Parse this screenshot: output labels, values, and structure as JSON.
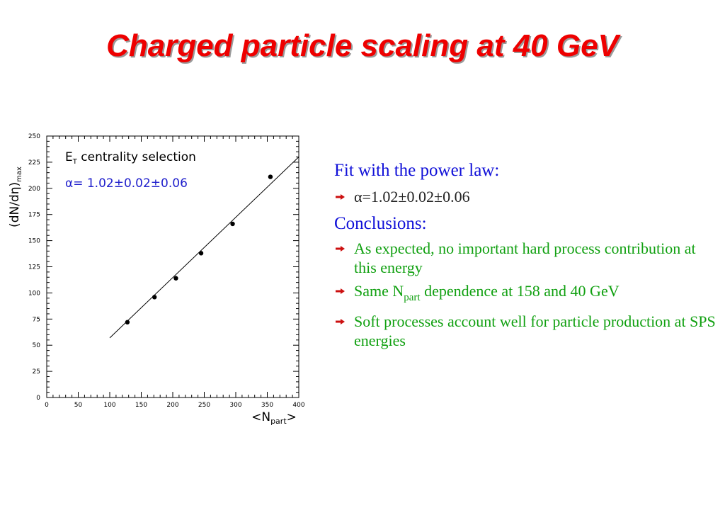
{
  "title": "Charged particle scaling at 40 GeV",
  "panel": {
    "fit_heading": "Fit with the power law:",
    "fit_result": "α=1.02±0.02±0.06",
    "conclusions_heading": "Conclusions:",
    "b1": "As expected, no important hard process contribution at this energy",
    "b2_pre": "Same N",
    "b2_sub": "part",
    "b2_post": " dependence at 158 and 40 GeV",
    "b3": "Soft processes account well for particle production at SPS energies",
    "arrow_icon": "right-arrow-icon"
  },
  "colors": {
    "title": "#ee0000",
    "heading": "#1010d8",
    "bullet_green": "#10a010",
    "chart_alpha": "#2020cc",
    "arrow": "#cc1010"
  },
  "chart_data": {
    "type": "scatter",
    "ylabel_main": "(dN/dη)",
    "ylabel_sub": "max",
    "xlabel_main": "<N",
    "xlabel_sub": "part",
    "xlabel_end": ">",
    "annotation1_main": "E",
    "annotation1_sub": "T",
    "annotation1_rest": " centrality selection",
    "annotation2": "α= 1.02±0.02±0.06",
    "xlim": [
      0,
      400
    ],
    "ylim": [
      0,
      250
    ],
    "xticks": [
      0,
      50,
      100,
      150,
      200,
      250,
      300,
      350,
      400
    ],
    "yticks": [
      0,
      25,
      50,
      75,
      100,
      125,
      150,
      175,
      200,
      225,
      250
    ],
    "points": [
      {
        "x": 128,
        "y": 72
      },
      {
        "x": 171,
        "y": 96
      },
      {
        "x": 205,
        "y": 114
      },
      {
        "x": 245,
        "y": 138
      },
      {
        "x": 295,
        "y": 166
      },
      {
        "x": 355,
        "y": 211
      }
    ],
    "fit_line": {
      "x": [
        100,
        400
      ],
      "y": [
        57,
        230
      ]
    },
    "grid": false
  }
}
